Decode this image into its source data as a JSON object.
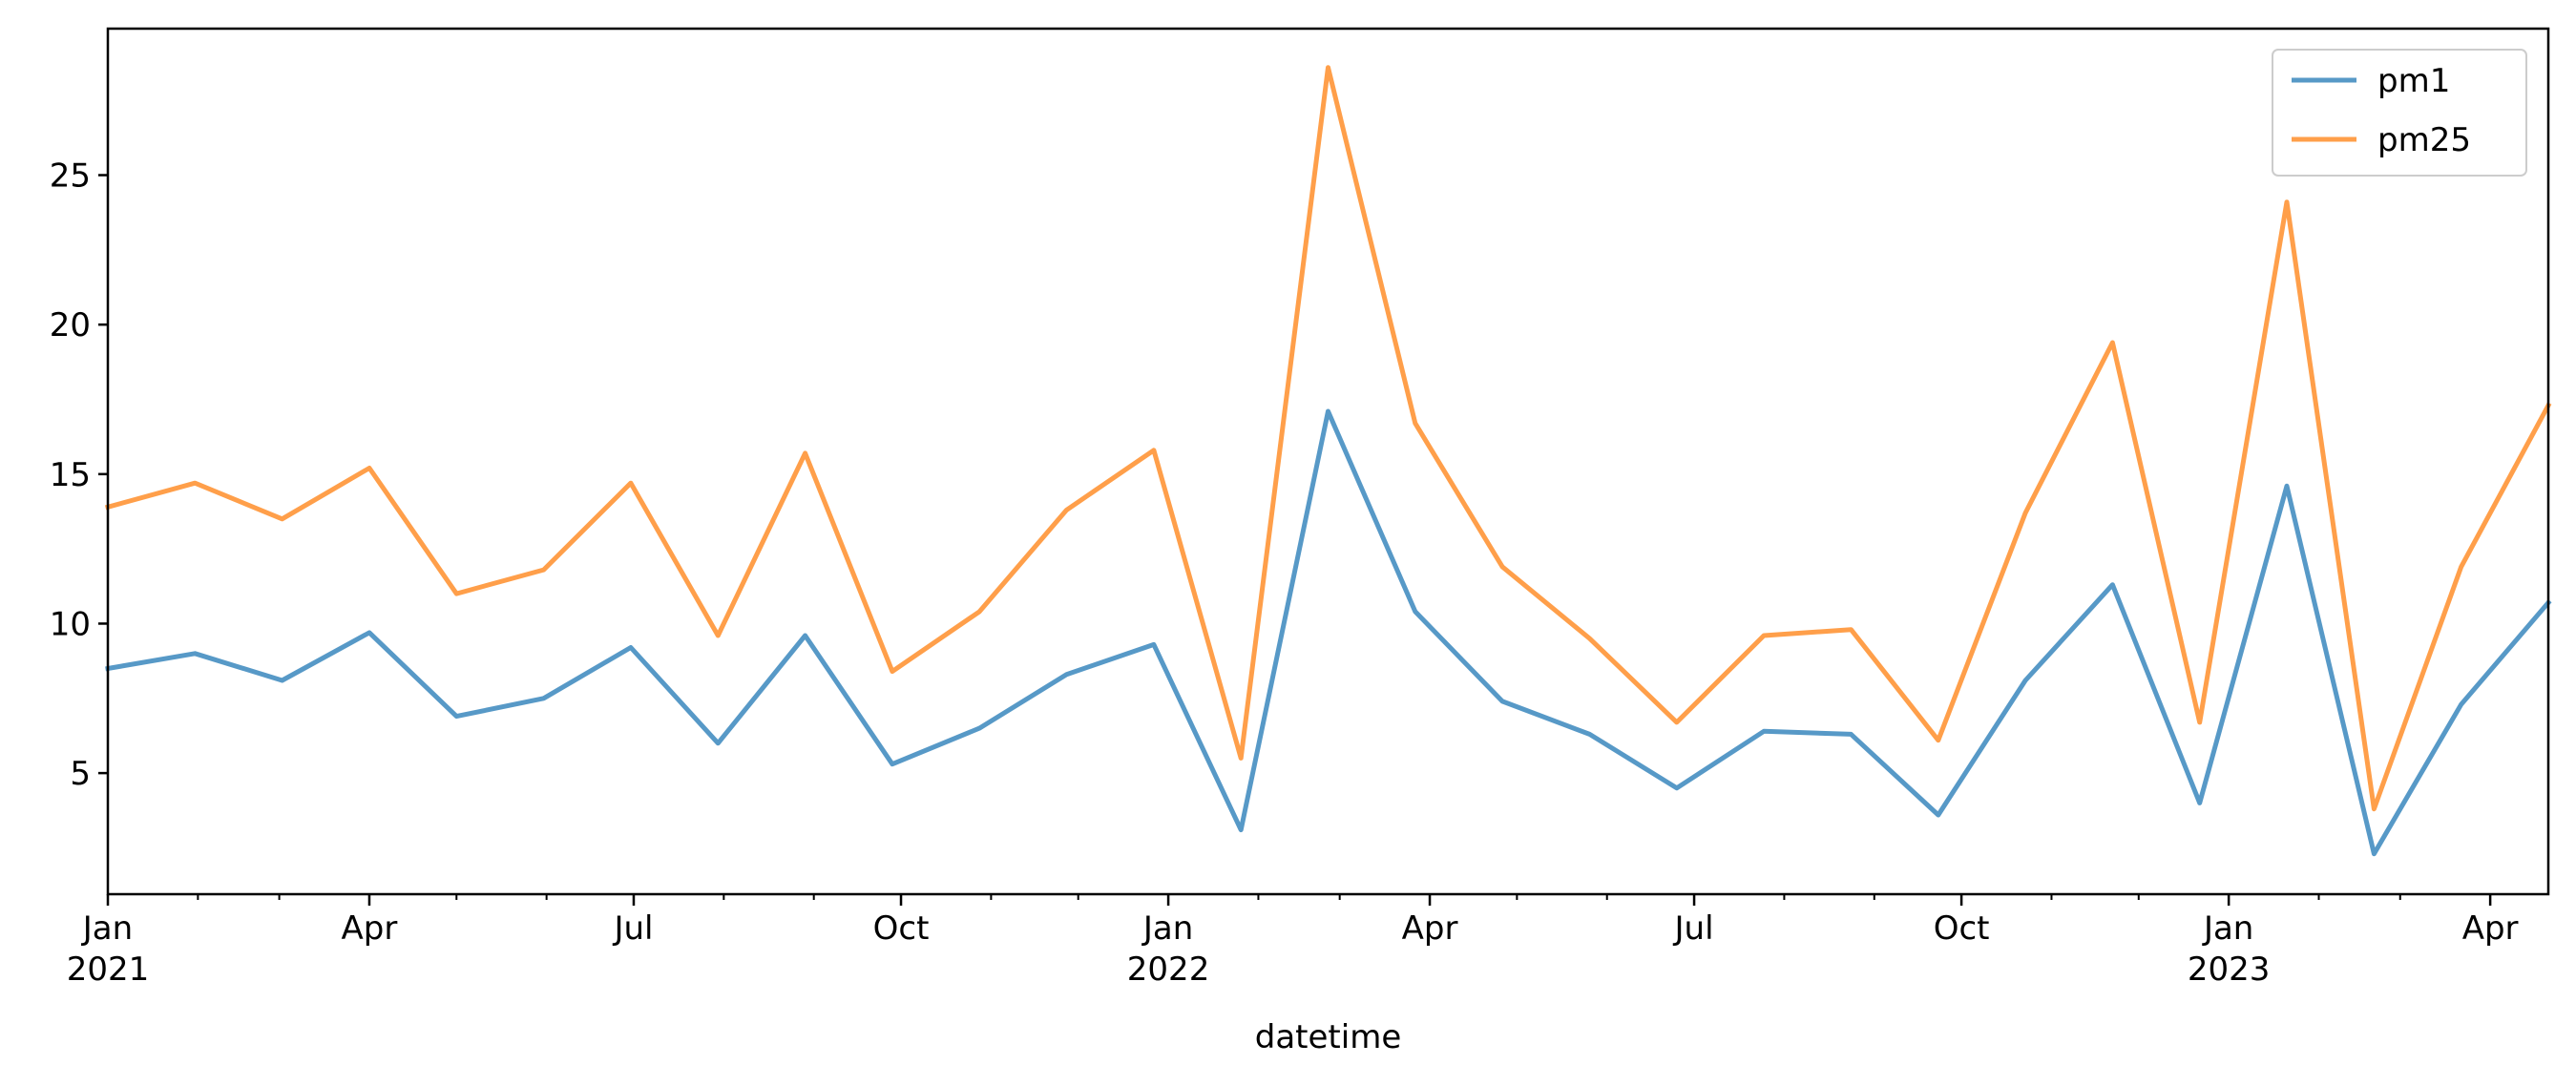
{
  "chart_data": {
    "type": "line",
    "title": "",
    "xlabel": "datetime",
    "ylabel": "",
    "x": [
      "2021-01-01",
      "2021-01-31",
      "2021-03-02",
      "2021-04-01",
      "2021-05-01",
      "2021-05-31",
      "2021-06-30",
      "2021-07-30",
      "2021-08-29",
      "2021-09-28",
      "2021-10-28",
      "2021-11-27",
      "2021-12-27",
      "2022-01-26",
      "2022-02-25",
      "2022-03-27",
      "2022-04-26",
      "2022-05-26",
      "2022-06-25",
      "2022-07-25",
      "2022-08-24",
      "2022-09-23",
      "2022-10-23",
      "2022-11-22",
      "2022-12-22",
      "2023-01-21",
      "2023-02-20",
      "2023-03-22",
      "2023-04-21"
    ],
    "xlim": [
      "2021-01-01",
      "2023-04-21"
    ],
    "ylim": [
      0.95,
      29.9
    ],
    "series": [
      {
        "name": "pm1",
        "color": "#5799c7",
        "values": [
          8.5,
          9.0,
          8.1,
          9.7,
          6.9,
          7.5,
          9.2,
          6.0,
          9.6,
          5.3,
          6.5,
          8.3,
          9.3,
          3.1,
          17.1,
          10.4,
          7.4,
          6.3,
          4.5,
          6.4,
          6.3,
          3.6,
          8.1,
          11.3,
          4.0,
          14.6,
          2.3,
          7.3,
          10.7
        ]
      },
      {
        "name": "pm25",
        "color": "#ff9f4a",
        "values": [
          13.9,
          14.7,
          13.5,
          15.2,
          11.0,
          11.8,
          14.7,
          9.6,
          15.7,
          8.4,
          10.4,
          13.8,
          15.8,
          5.5,
          28.6,
          16.7,
          11.9,
          9.5,
          6.7,
          9.6,
          9.8,
          6.1,
          13.7,
          19.4,
          6.7,
          24.1,
          3.8,
          11.9,
          17.3
        ]
      }
    ],
    "yticks": [
      5,
      10,
      15,
      20,
      25
    ],
    "xticks": [
      {
        "date": "2021-01-01",
        "label": "Jan",
        "sublabel": "2021"
      },
      {
        "date": "2021-04-01",
        "label": "Apr",
        "sublabel": ""
      },
      {
        "date": "2021-07-01",
        "label": "Jul",
        "sublabel": ""
      },
      {
        "date": "2021-10-01",
        "label": "Oct",
        "sublabel": ""
      },
      {
        "date": "2022-01-01",
        "label": "Jan",
        "sublabel": "2022"
      },
      {
        "date": "2022-04-01",
        "label": "Apr",
        "sublabel": ""
      },
      {
        "date": "2022-07-01",
        "label": "Jul",
        "sublabel": ""
      },
      {
        "date": "2022-10-01",
        "label": "Oct",
        "sublabel": ""
      },
      {
        "date": "2023-01-01",
        "label": "Jan",
        "sublabel": "2023"
      },
      {
        "date": "2023-04-01",
        "label": "Apr",
        "sublabel": ""
      }
    ],
    "minor_xticks": [
      "2021-02-01",
      "2021-03-01",
      "2021-05-01",
      "2021-06-01",
      "2021-08-01",
      "2021-09-01",
      "2021-11-01",
      "2021-12-01",
      "2022-02-01",
      "2022-03-01",
      "2022-05-01",
      "2022-06-01",
      "2022-08-01",
      "2022-09-01",
      "2022-11-01",
      "2022-12-01",
      "2023-02-01",
      "2023-03-01"
    ],
    "grid": false,
    "legend_position": "top-right"
  }
}
